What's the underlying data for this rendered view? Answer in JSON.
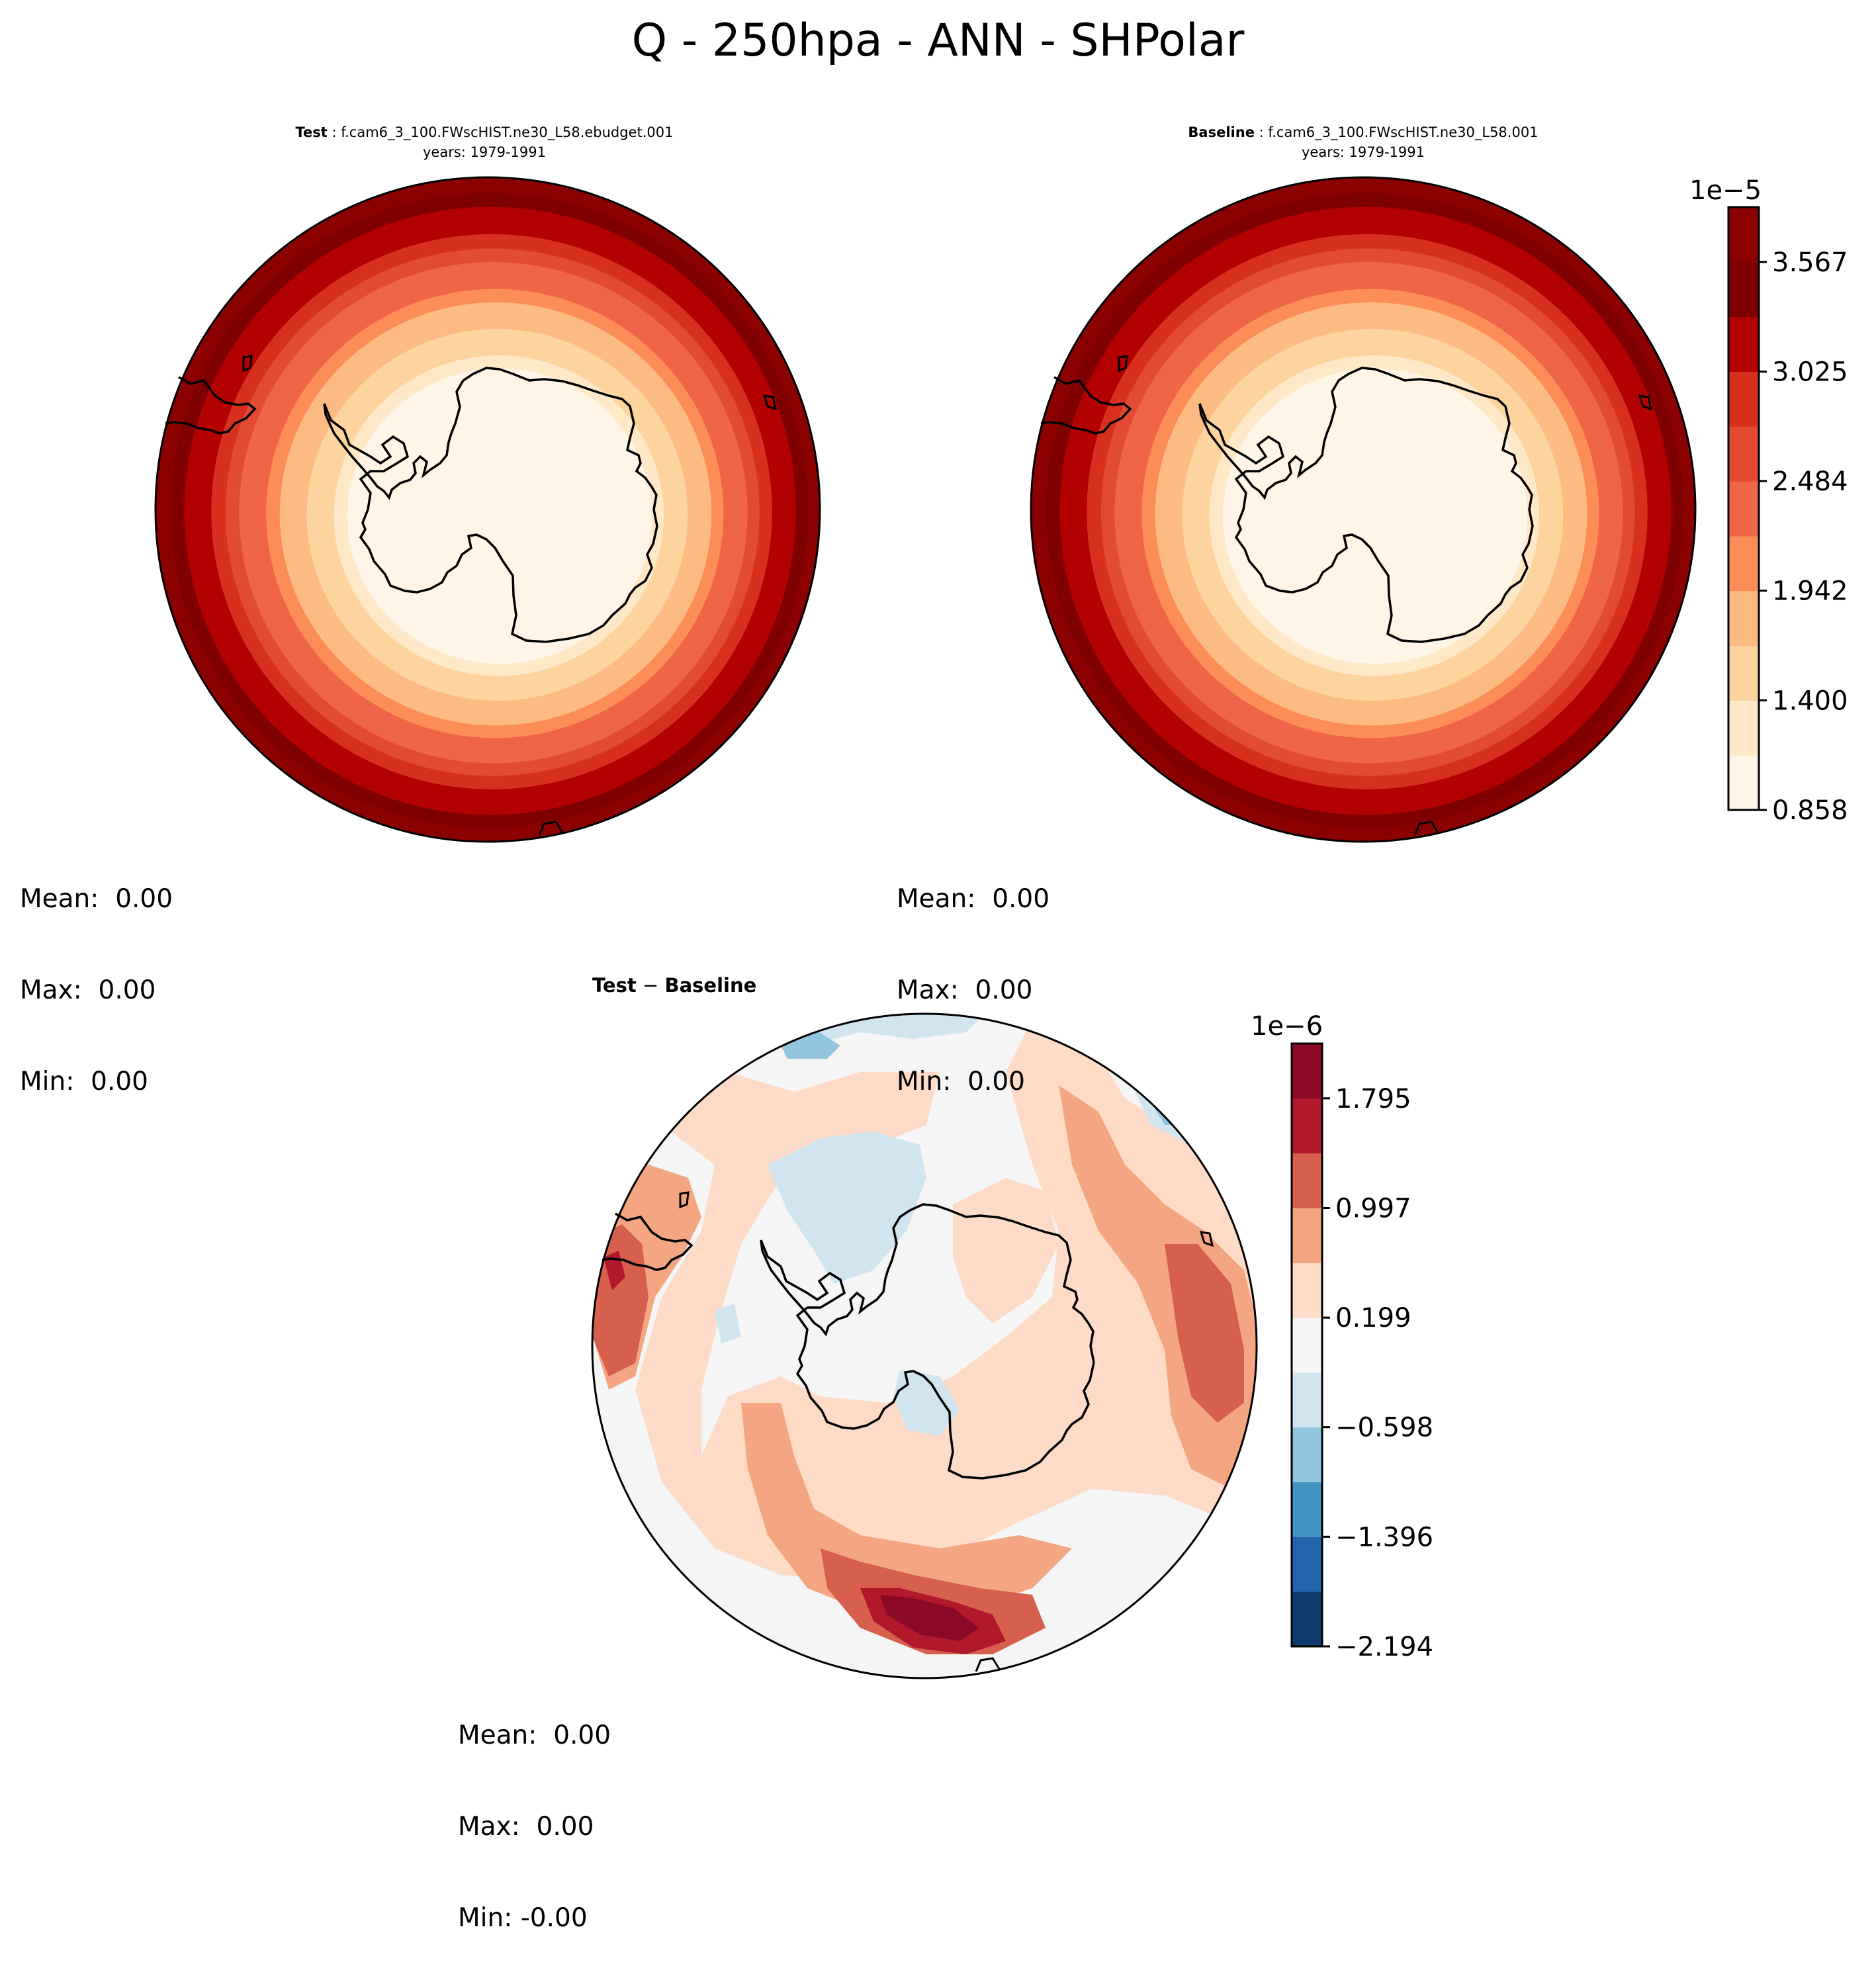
{
  "title": "Q - 250hpa - ANN - SHPolar",
  "panels": {
    "test": {
      "label": "Test",
      "case": "f.cam6_3_100.FWscHIST.ne30_L58.ebudget.001",
      "years": "years: 1979-1991",
      "stats": {
        "mean": "Mean:  0.00",
        "max": "Max:  0.00",
        "min": "Min:  0.00"
      }
    },
    "baseline": {
      "label": "Baseline",
      "case": "f.cam6_3_100.FWscHIST.ne30_L58.001",
      "years": "years: 1979-1991",
      "stats": {
        "mean": "Mean:  0.00",
        "max": "Max:  0.00",
        "min": "Min:  0.00"
      }
    },
    "diff": {
      "label_a": "Test",
      "label_sep": " − ",
      "label_b": "Baseline",
      "stats": {
        "mean": "Mean:  0.00",
        "max": "Max:  0.00",
        "min": "Min: -0.00"
      }
    }
  },
  "chart_data": [
    {
      "type": "heatmap",
      "name": "test-map",
      "projection": "South Polar Stereographic",
      "colormap": "OrRd-like",
      "field_levels_1e-5": [
        3.75,
        3.57,
        3.39,
        3.21,
        3.03,
        2.85,
        2.66,
        2.48,
        2.3,
        2.12,
        1.94,
        1.76,
        1.58,
        1.4,
        1.22,
        1.04
      ],
      "colorbar": {
        "exponent_label": "1e−5",
        "ticks": [
          "3.567",
          "3.025",
          "2.484",
          "1.942",
          "1.400",
          "0.858"
        ],
        "levels": [
          0.858,
          1.129,
          1.4,
          1.671,
          1.942,
          2.213,
          2.484,
          2.754,
          3.025,
          3.296,
          3.567,
          3.838
        ],
        "colors": [
          "#fff5e6",
          "#fee8c8",
          "#fdd49e",
          "#fdbb84",
          "#fc8d59",
          "#ef6548",
          "#e34a33",
          "#d7301f",
          "#b30000",
          "#7f0000",
          "#8b0000"
        ]
      }
    },
    {
      "type": "heatmap",
      "name": "baseline-map",
      "projection": "South Polar Stereographic",
      "colormap": "OrRd-like",
      "field_levels_1e-5": [
        3.75,
        3.57,
        3.39,
        3.21,
        3.03,
        2.85,
        2.66,
        2.48,
        2.3,
        2.12,
        1.94,
        1.76,
        1.58,
        1.4,
        1.22,
        1.04
      ]
    },
    {
      "type": "heatmap",
      "name": "difference-map",
      "projection": "South Polar Stereographic",
      "colormap": "RdBu_r",
      "colorbar": {
        "exponent_label": "1e−6",
        "ticks": [
          "1.795",
          "0.997",
          "0.199",
          "−0.598",
          "−1.396",
          "−2.194"
        ],
        "levels": [
          -2.194,
          -1.795,
          -1.396,
          -0.997,
          -0.598,
          -0.199,
          0.199,
          0.598,
          0.997,
          1.396,
          1.795,
          2.194
        ],
        "colors": [
          "#0d3b6e",
          "#2166ac",
          "#4393c3",
          "#92c5de",
          "#d1e5f0",
          "#f5f5f5",
          "#fddbc7",
          "#f4a582",
          "#d6604d",
          "#b2182b",
          "#8b0a26"
        ]
      }
    }
  ],
  "colors": {
    "outline": "#000000",
    "coast": "#000000",
    "background": "#ffffff"
  }
}
